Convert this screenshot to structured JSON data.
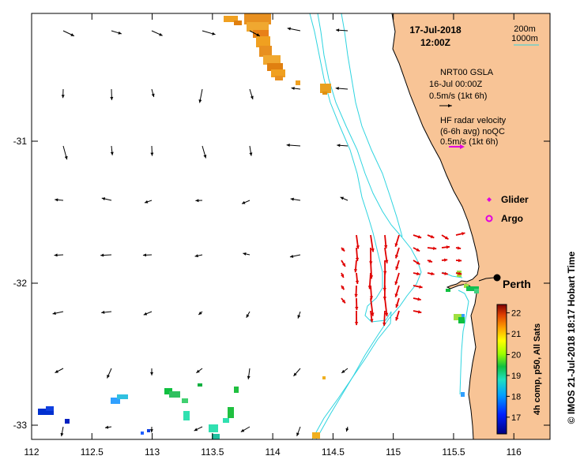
{
  "map": {
    "date": "17-Jul-2018",
    "time": "12:00Z",
    "x_ticks": [
      "112",
      "112.5",
      "113",
      "113.5",
      "114",
      "114.5",
      "115",
      "115.5",
      "116"
    ],
    "y_ticks": [
      "-31",
      "-32",
      "-33"
    ],
    "lon_range": [
      112,
      116.3
    ],
    "lat_range": [
      -33.1,
      -30.1
    ]
  },
  "bathymetry_legend": {
    "line1": "200m",
    "line2": "1000m"
  },
  "altimetry": {
    "title": "NRT00 GSLA",
    "date": "16-Jul 00:00Z",
    "scale": "0.5m/s (1kt 6h)"
  },
  "radar": {
    "title": "HF radar velocity",
    "avg": "(6-6h avg) noQC",
    "scale": "0.5m/s (1kt 6h)"
  },
  "markers": {
    "glider": "Glider",
    "argo": "Argo",
    "city": "Perth"
  },
  "colorbar": {
    "ticks": [
      "22",
      "21",
      "20",
      "19",
      "18",
      "17"
    ],
    "label": "4h comp, p50, All Sats",
    "range": [
      16.2,
      22.4
    ]
  },
  "credit": "©  IMOS 21-Jul-2018 18:17 Hobart Time",
  "colors": {
    "land": "#f8c496",
    "coast": "#000000",
    "isobath": "#2fd4e0",
    "altimetry_arrow": "#000000",
    "radar_arrow": "#e00000",
    "argo_symbol": "#e000e0",
    "glider_symbol": "#e000e0"
  }
}
